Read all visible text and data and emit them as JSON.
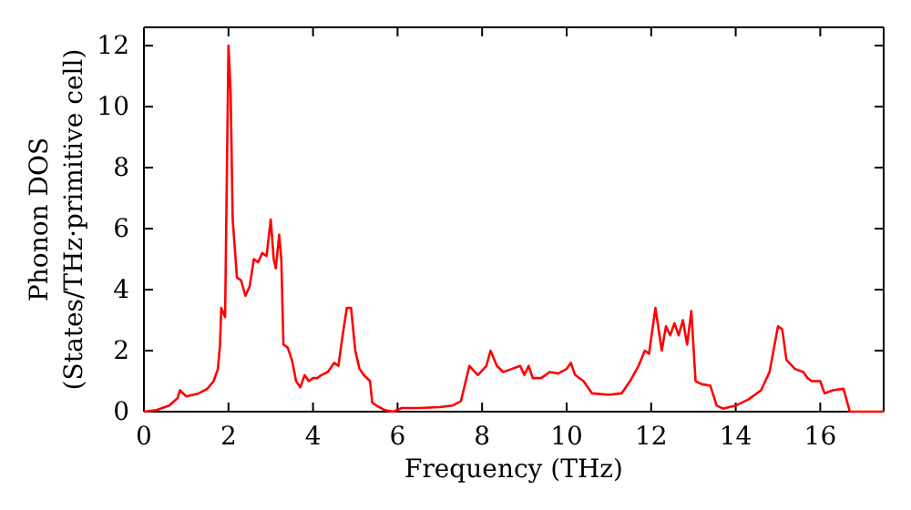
{
  "chart_data": {
    "type": "line",
    "xlabel": "Frequency (THz)",
    "ylabel": "Phonon DOS\n(States/THz·primitive cell)",
    "xlim": [
      0,
      17.5
    ],
    "ylim": [
      0,
      12.6
    ],
    "xticks": [
      0,
      2,
      4,
      6,
      8,
      10,
      12,
      14,
      16
    ],
    "yticks": [
      0,
      2,
      4,
      6,
      8,
      10,
      12
    ],
    "grid": false,
    "marker": "none",
    "line_style": "solid",
    "series": [
      {
        "color": "#ff0000",
        "x": [
          0,
          0.3,
          0.6,
          0.8,
          0.85,
          1.0,
          1.3,
          1.5,
          1.65,
          1.75,
          1.8,
          1.83,
          1.92,
          2.0,
          2.05,
          2.1,
          2.2,
          2.3,
          2.4,
          2.5,
          2.6,
          2.7,
          2.8,
          2.9,
          3.0,
          3.07,
          3.12,
          3.2,
          3.25,
          3.3,
          3.4,
          3.5,
          3.6,
          3.7,
          3.8,
          3.9,
          4.0,
          4.1,
          4.2,
          4.35,
          4.5,
          4.6,
          4.7,
          4.8,
          4.9,
          5.0,
          5.1,
          5.2,
          5.35,
          5.4,
          5.5,
          5.7,
          5.9,
          6.1,
          6.5,
          7.0,
          7.3,
          7.5,
          7.7,
          7.9,
          8.1,
          8.2,
          8.35,
          8.5,
          8.7,
          8.9,
          9.0,
          9.1,
          9.2,
          9.4,
          9.6,
          9.8,
          10.0,
          10.1,
          10.2,
          10.4,
          10.6,
          11.0,
          11.3,
          11.5,
          11.7,
          11.85,
          11.95,
          12.1,
          12.25,
          12.35,
          12.45,
          12.55,
          12.65,
          12.75,
          12.85,
          12.95,
          13.05,
          13.2,
          13.4,
          13.55,
          13.7,
          14.0,
          14.3,
          14.6,
          14.8,
          15.0,
          15.1,
          15.2,
          15.4,
          15.6,
          15.7,
          15.8,
          16.0,
          16.1,
          16.3,
          16.55,
          16.7,
          17.5
        ],
        "values": [
          0,
          0.05,
          0.2,
          0.45,
          0.7,
          0.5,
          0.6,
          0.75,
          1.0,
          1.4,
          2.2,
          3.4,
          3.1,
          12.0,
          10.5,
          6.3,
          4.4,
          4.3,
          3.8,
          4.1,
          5.0,
          4.9,
          5.2,
          5.1,
          6.3,
          5.0,
          4.7,
          5.8,
          5.0,
          2.2,
          2.1,
          1.7,
          1.0,
          0.8,
          1.2,
          1.0,
          1.1,
          1.1,
          1.2,
          1.3,
          1.6,
          1.5,
          2.5,
          3.4,
          3.4,
          2.0,
          1.4,
          1.2,
          1.0,
          0.3,
          0.2,
          0.05,
          0,
          0.12,
          0.12,
          0.15,
          0.2,
          0.35,
          1.5,
          1.2,
          1.5,
          2.0,
          1.5,
          1.3,
          1.4,
          1.5,
          1.2,
          1.5,
          1.1,
          1.1,
          1.3,
          1.25,
          1.4,
          1.6,
          1.2,
          1.0,
          0.6,
          0.55,
          0.6,
          1.0,
          1.5,
          2.0,
          1.9,
          3.4,
          2.0,
          2.8,
          2.5,
          2.9,
          2.5,
          3.0,
          2.2,
          3.3,
          1.0,
          0.9,
          0.85,
          0.2,
          0.1,
          0.2,
          0.4,
          0.7,
          1.3,
          2.8,
          2.7,
          1.7,
          1.4,
          1.3,
          1.1,
          1.0,
          1.0,
          0.6,
          0.7,
          0.75,
          0,
          0
        ]
      }
    ]
  }
}
